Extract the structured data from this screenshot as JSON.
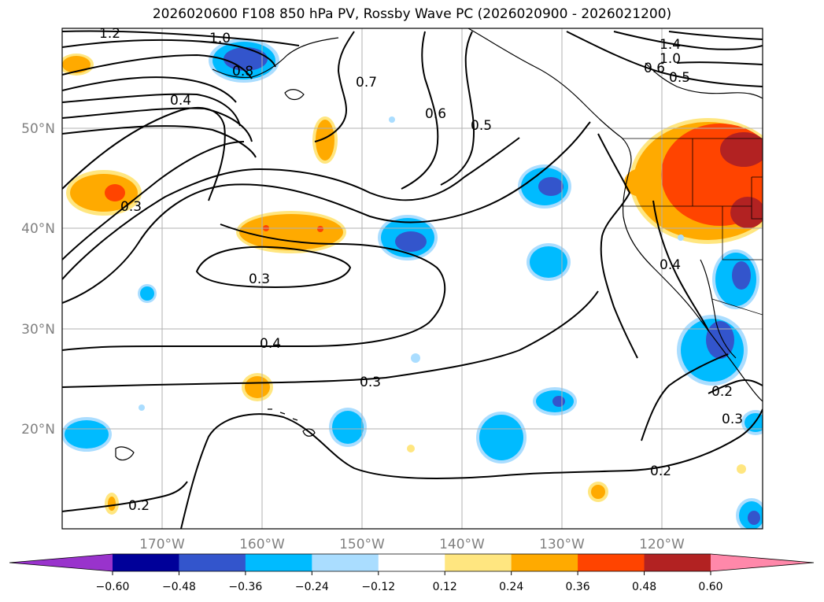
{
  "title": "2026020600 F108 850 hPa PV, Rossby Wave PC (2026020900 - 2026021200)",
  "lat_labels": [
    "50°N",
    "40°N",
    "30°N",
    "20°N"
  ],
  "lon_labels": [
    "170°W",
    "160°W",
    "150°W",
    "140°W",
    "130°W",
    "120°W"
  ],
  "contour_labels": [
    "1.2",
    "1.0",
    "1.4",
    "1.0",
    "0.6",
    "0.5",
    "0.8",
    "0.4",
    "0.7",
    "0.6",
    "0.5",
    "0.3",
    "0.3",
    "0.4",
    "0.4",
    "0.3",
    "0.2",
    "0.2",
    "0.2",
    "0.3"
  ],
  "colorbar": {
    "ticks": [
      "−0.60",
      "−0.48",
      "−0.36",
      "−0.24",
      "−0.12",
      "0.12",
      "0.24",
      "0.36",
      "0.48",
      "0.60"
    ],
    "colors": [
      "#9933cc",
      "#000099",
      "#3355cc",
      "#00bbff",
      "#aaddff",
      "#ffffff",
      "#ffe680",
      "#ffaa00",
      "#ff4400",
      "#b22222",
      "#ff88aa"
    ]
  }
}
